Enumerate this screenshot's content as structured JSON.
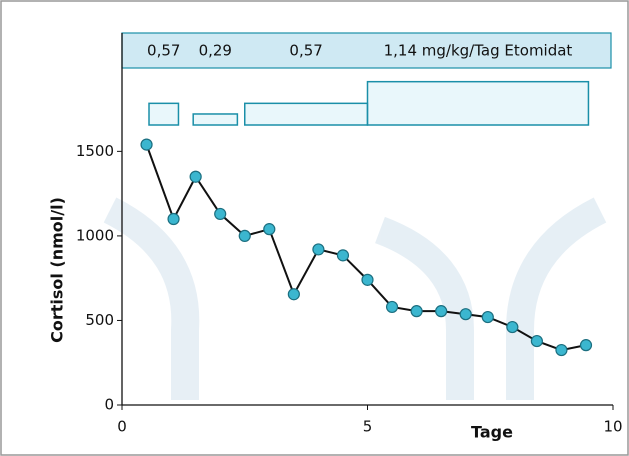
{
  "chart_data": {
    "type": "line",
    "x_label": "Tage",
    "y_label": "Cortisol (nmol/l)",
    "x": [
      0.5,
      1.05,
      1.5,
      2.0,
      2.5,
      3.0,
      3.5,
      4.0,
      4.5,
      5.0,
      5.5,
      6.0,
      6.5,
      7.0,
      7.45,
      7.95,
      8.45,
      8.95,
      9.45
    ],
    "series": [
      {
        "color": "#3bb6cf",
        "values": [
          1540,
          1100,
          1350,
          1130,
          1000,
          1040,
          655,
          920,
          885,
          740,
          580,
          555,
          555,
          537,
          520,
          461,
          378,
          325,
          354
        ]
      }
    ],
    "xlim": [
      0,
      10
    ],
    "ylim": [
      0,
      2200
    ],
    "xticks": [
      0,
      5,
      10
    ],
    "yticks": [
      0,
      500,
      1000,
      1500
    ],
    "dose_blocks": [
      {
        "label": "0,57",
        "x_start": 0.55,
        "x_end": 1.15,
        "dose": 0.57
      },
      {
        "label": "0,29",
        "x_start": 1.45,
        "x_end": 2.35,
        "dose": 0.29
      },
      {
        "label": "0,57",
        "x_start": 2.5,
        "x_end": 5.0,
        "dose": 0.57
      },
      {
        "label": "1,14 mg/kg/Tag Etomidat",
        "x_start": 5.0,
        "x_end": 9.5,
        "dose": 1.14
      }
    ]
  }
}
